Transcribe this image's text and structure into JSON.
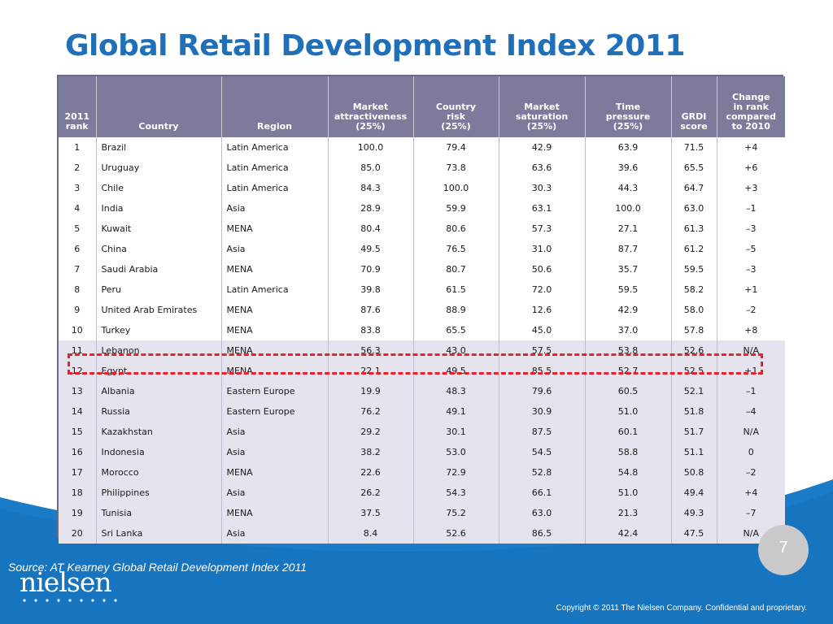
{
  "slide": {
    "title": "Global Retail Development Index 2011",
    "page_number": "7",
    "source": "Source: AT Kearney Global Retail Development  Index 2011",
    "logo_text": "nielsen",
    "copyright": "Copyright © 2011 The Nielsen Company. Confidential and proprietary.",
    "colors": {
      "title": "#1f6fb9",
      "footer_blue": "#1a7cc9",
      "header": "#7d7b9c",
      "shade": "#e4e3ee",
      "highlight": "#e4242b"
    }
  },
  "table": {
    "headers": [
      [
        "2011",
        "rank"
      ],
      [
        "Country"
      ],
      [
        "Region"
      ],
      [
        "Market",
        "attractiveness",
        "(25%)"
      ],
      [
        "Country",
        "risk",
        "(25%)"
      ],
      [
        "Market",
        "saturation",
        "(25%)"
      ],
      [
        "Time",
        "pressure",
        "(25%)"
      ],
      [
        "GRDI",
        "score"
      ],
      [
        "Change",
        "in rank",
        "compared",
        "to 2010"
      ]
    ],
    "highlighted_country": "Egypt",
    "rows": [
      [
        "1",
        "Brazil",
        "Latin America",
        "100.0",
        "79.4",
        "42.9",
        "63.9",
        "71.5",
        "+4"
      ],
      [
        "2",
        "Uruguay",
        "Latin America",
        "85.0",
        "73.8",
        "63.6",
        "39.6",
        "65.5",
        "+6"
      ],
      [
        "3",
        "Chile",
        "Latin America",
        "84.3",
        "100.0",
        "30.3",
        "44.3",
        "64.7",
        "+3"
      ],
      [
        "4",
        "India",
        "Asia",
        "28.9",
        "59.9",
        "63.1",
        "100.0",
        "63.0",
        "–1"
      ],
      [
        "5",
        "Kuwait",
        "MENA",
        "80.4",
        "80.6",
        "57.3",
        "27.1",
        "61.3",
        "–3"
      ],
      [
        "6",
        "China",
        "Asia",
        "49.5",
        "76.5",
        "31.0",
        "87.7",
        "61.2",
        "–5"
      ],
      [
        "7",
        "Saudi Arabia",
        "MENA",
        "70.9",
        "80.7",
        "50.6",
        "35.7",
        "59.5",
        "–3"
      ],
      [
        "8",
        "Peru",
        "Latin America",
        "39.8",
        "61.5",
        "72.0",
        "59.5",
        "58.2",
        "+1"
      ],
      [
        "9",
        "United Arab Emirates",
        "MENA",
        "87.6",
        "88.9",
        "12.6",
        "42.9",
        "58.0",
        "–2"
      ],
      [
        "10",
        "Turkey",
        "MENA",
        "83.8",
        "65.5",
        "45.0",
        "37.0",
        "57.8",
        "+8"
      ],
      [
        "11",
        "Lebanon",
        "MENA",
        "56.3",
        "43.0",
        "57.5",
        "53.8",
        "52.6",
        "N/A"
      ],
      [
        "12",
        "Egypt",
        "MENA",
        "22.1",
        "49.5",
        "85.5",
        "52.7",
        "52.5",
        "+1"
      ],
      [
        "13",
        "Albania",
        "Eastern Europe",
        "19.9",
        "48.3",
        "79.6",
        "60.5",
        "52.1",
        "–1"
      ],
      [
        "14",
        "Russia",
        "Eastern Europe",
        "76.2",
        "49.1",
        "30.9",
        "51.0",
        "51.8",
        "–4"
      ],
      [
        "15",
        "Kazakhstan",
        "Asia",
        "29.2",
        "30.1",
        "87.5",
        "60.1",
        "51.7",
        "N/A"
      ],
      [
        "16",
        "Indonesia",
        "Asia",
        "38.2",
        "53.0",
        "54.5",
        "58.8",
        "51.1",
        "0"
      ],
      [
        "17",
        "Morocco",
        "MENA",
        "22.6",
        "72.9",
        "52.8",
        "54.8",
        "50.8",
        "–2"
      ],
      [
        "18",
        "Philippines",
        "Asia",
        "26.2",
        "54.3",
        "66.1",
        "51.0",
        "49.4",
        "+4"
      ],
      [
        "19",
        "Tunisia",
        "MENA",
        "37.5",
        "75.2",
        "63.0",
        "21.3",
        "49.3",
        "–7"
      ],
      [
        "20",
        "Sri Lanka",
        "Asia",
        "8.4",
        "52.6",
        "86.5",
        "42.4",
        "47.5",
        "N/A"
      ]
    ]
  }
}
